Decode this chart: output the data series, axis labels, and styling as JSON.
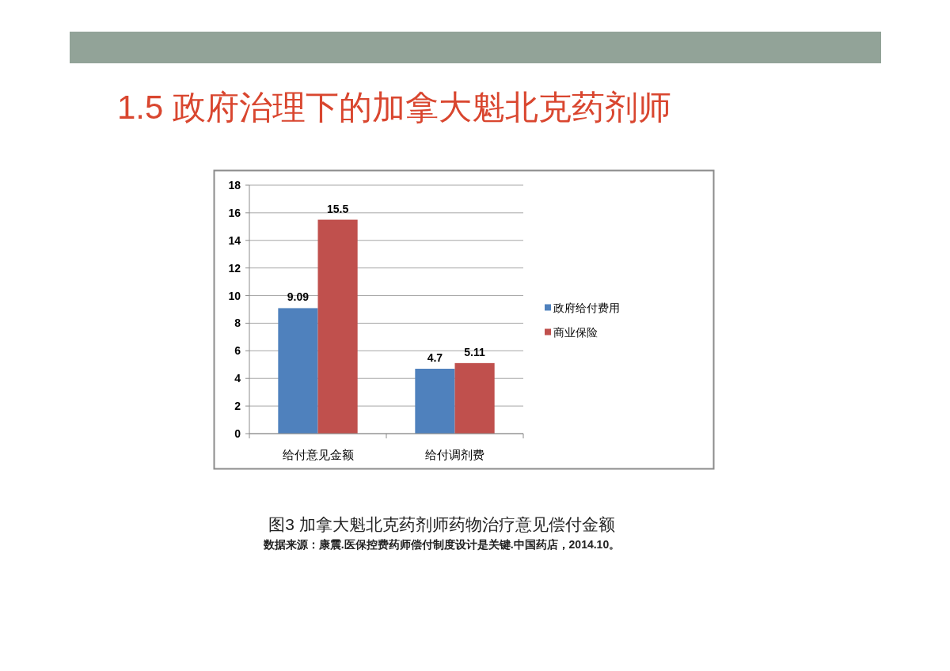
{
  "chart_data": {
    "type": "bar",
    "title": "1.5 政府治理下的加拿大魁北克药剂师",
    "categories": [
      "给付意见金额",
      "给付调剂费"
    ],
    "series": [
      {
        "name": "政府给付费用",
        "color": "#4f81bd",
        "values": [
          9.09,
          4.7
        ]
      },
      {
        "name": "商业保险",
        "color": "#c0504d",
        "values": [
          15.5,
          5.11
        ]
      }
    ],
    "ylim": [
      0,
      18
    ],
    "yticks": [
      0,
      2,
      4,
      6,
      8,
      10,
      12,
      14,
      16,
      18
    ],
    "grid": "y",
    "legend": "right",
    "data_labels": true,
    "annotations": [
      "图3 加拿大魁北克药剂师药物治疗意见偿付金额",
      "数据来源：康震.医保控费药师偿付制度设计是关键.中国药店，2014.10。"
    ]
  }
}
